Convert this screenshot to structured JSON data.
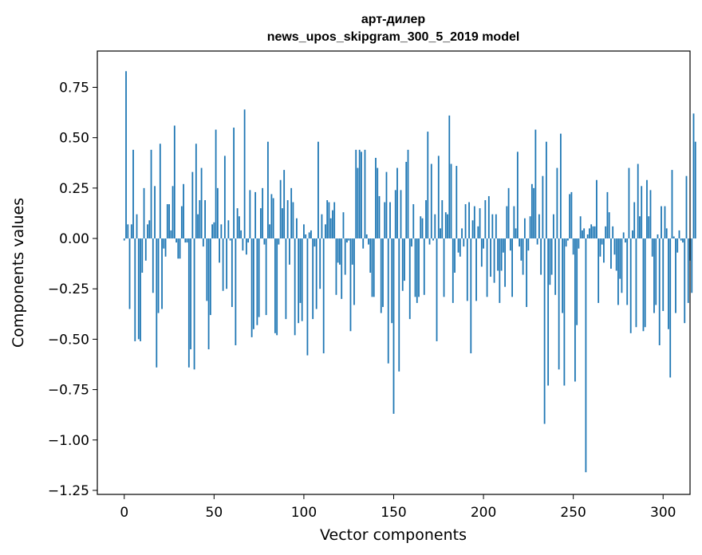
{
  "chart_data": {
    "type": "bar",
    "title": "арт-дилер",
    "subtitle": "news_upos_skipgram_300_5_2019 model",
    "xlabel": "Vector components",
    "ylabel": "Components values",
    "xlim": [
      -15,
      315
    ],
    "ylim": [
      -1.27,
      0.93
    ],
    "xticks": [
      0,
      50,
      100,
      150,
      200,
      250,
      300
    ],
    "yticks": [
      -1.25,
      -1.0,
      -0.75,
      -0.5,
      -0.25,
      0.0,
      0.25,
      0.5,
      0.75
    ],
    "ytick_labels": [
      "−1.25",
      "−1.00",
      "−0.75",
      "−0.50",
      "−0.25",
      "0.00",
      "0.25",
      "0.50",
      "0.75"
    ],
    "xtick_labels": [
      "0",
      "50",
      "100",
      "150",
      "200",
      "250",
      "300"
    ],
    "bar_color": "#1f77b4",
    "series_name": "components",
    "values": [
      -0.01,
      0.83,
      0.07,
      -0.35,
      0.07,
      0.44,
      -0.51,
      0.12,
      -0.5,
      -0.51,
      -0.17,
      0.25,
      -0.11,
      0.07,
      0.09,
      0.44,
      -0.27,
      0.26,
      -0.64,
      -0.37,
      0.47,
      -0.35,
      -0.05,
      -0.09,
      0.17,
      0.17,
      0.04,
      0.26,
      0.56,
      -0.02,
      -0.1,
      -0.1,
      0.16,
      0.27,
      -0.02,
      -0.02,
      -0.64,
      -0.55,
      0.33,
      -0.65,
      0.47,
      0.12,
      0.19,
      0.35,
      -0.04,
      0.19,
      -0.31,
      -0.55,
      -0.38,
      0.07,
      0.08,
      0.54,
      0.25,
      -0.12,
      0.07,
      -0.26,
      0.41,
      -0.25,
      0.09,
      -0.01,
      -0.34,
      0.55,
      -0.53,
      0.15,
      0.11,
      0.04,
      -0.06,
      0.64,
      -0.08,
      -0.02,
      0.24,
      -0.49,
      -0.45,
      0.23,
      -0.43,
      -0.39,
      0.15,
      0.25,
      -0.03,
      -0.38,
      0.48,
      0.07,
      0.22,
      0.2,
      -0.47,
      -0.48,
      -0.03,
      0.29,
      0.15,
      0.34,
      -0.4,
      0.19,
      -0.13,
      0.25,
      0.18,
      -0.48,
      0.1,
      -0.42,
      -0.32,
      -0.41,
      0.07,
      0.02,
      -0.58,
      0.03,
      0.04,
      -0.4,
      -0.04,
      -0.35,
      0.48,
      -0.25,
      0.12,
      -0.57,
      0.07,
      0.19,
      0.18,
      0.1,
      0.14,
      0.18,
      -0.28,
      -0.12,
      -0.13,
      -0.3,
      0.13,
      -0.18,
      -0.02,
      -0.01,
      -0.46,
      -0.13,
      -0.33,
      0.44,
      0.35,
      0.44,
      0.43,
      -0.05,
      0.44,
      0.02,
      -0.03,
      -0.17,
      -0.29,
      -0.29,
      0.4,
      0.35,
      0.21,
      -0.37,
      -0.34,
      0.18,
      0.33,
      -0.62,
      0.18,
      -0.42,
      -0.87,
      0.24,
      0.35,
      -0.66,
      0.24,
      -0.26,
      -0.21,
      0.38,
      0.44,
      -0.4,
      -0.04,
      0.17,
      -0.29,
      -0.32,
      -0.29,
      0.11,
      0.1,
      -0.28,
      0.19,
      0.53,
      -0.03,
      0.37,
      -0.01,
      0.12,
      -0.51,
      0.41,
      0.05,
      0.19,
      -0.29,
      0.13,
      0.12,
      0.61,
      0.37,
      -0.32,
      -0.17,
      0.36,
      -0.07,
      -0.09,
      0.05,
      -0.04,
      0.17,
      -0.31,
      0.18,
      -0.57,
      0.09,
      0.16,
      -0.31,
      0.06,
      0.15,
      -0.14,
      -0.05,
      0.19,
      -0.29,
      0.21,
      -0.19,
      0.12,
      -0.22,
      0.12,
      -0.16,
      -0.32,
      -0.16,
      -0.07,
      -0.24,
      0.16,
      0.25,
      -0.06,
      -0.29,
      0.16,
      0.05,
      0.43,
      -0.04,
      -0.11,
      -0.18,
      0.1,
      -0.34,
      -0.06,
      0.11,
      0.27,
      0.25,
      0.54,
      -0.03,
      0.12,
      -0.18,
      0.31,
      -0.92,
      0.48,
      -0.73,
      -0.23,
      -0.18,
      0.12,
      -0.28,
      0.35,
      -0.65,
      0.52,
      -0.37,
      -0.73,
      -0.04,
      -0.01,
      0.22,
      0.23,
      -0.08,
      -0.71,
      -0.43,
      -0.05,
      0.11,
      0.04,
      0.05,
      -1.16,
      0.02,
      0.05,
      0.07,
      0.06,
      0.06,
      0.29,
      -0.32,
      -0.09,
      -0.03,
      -0.12,
      0.06,
      0.23,
      0.13,
      -0.15,
      0.06,
      -0.08,
      -0.16,
      -0.33,
      -0.2,
      -0.27,
      0.03,
      -0.02,
      -0.33,
      0.35,
      -0.47,
      0.04,
      0.18,
      -0.44,
      0.37,
      0.11,
      0.26,
      -0.46,
      -0.44,
      0.29,
      0.11,
      0.24,
      -0.09,
      -0.37,
      -0.33,
      0.02,
      -0.53,
      0.16,
      -0.36,
      0.16,
      0.05,
      -0.45,
      -0.69,
      0.34,
      0.01,
      -0.37,
      -0.07,
      0.04,
      -0.01,
      -0.02,
      -0.42,
      0.31,
      -0.32,
      -0.11,
      -0.27,
      0.62,
      0.48
    ]
  }
}
